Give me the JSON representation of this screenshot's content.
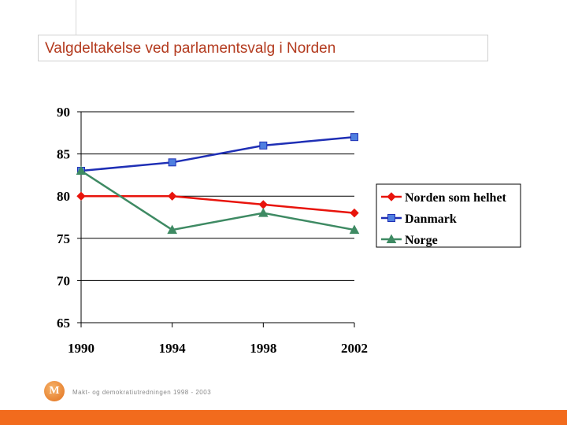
{
  "slide": {
    "title": "Valgdeltakelse ved parlamentsvalg i Norden",
    "footer_logo": "M",
    "footer_text": "Makt- og demokratiutredningen 1998 - 2003",
    "accent_color": "#f26b1d",
    "title_color": "#b33a1e"
  },
  "chart_data": {
    "type": "line",
    "title": "",
    "xlabel": "",
    "ylabel": "",
    "categories": [
      "1990",
      "1994",
      "1998",
      "2002"
    ],
    "ylim": [
      65,
      90
    ],
    "yticks": [
      "65",
      "70",
      "75",
      "80",
      "85",
      "90"
    ],
    "grid": "horizontal",
    "legend_position": "right",
    "series": [
      {
        "name": "Norden som helhet",
        "values": [
          80,
          80,
          79,
          78
        ],
        "color": "#e8140c",
        "marker": "diamond"
      },
      {
        "name": "Danmark",
        "values": [
          83,
          84,
          86,
          87
        ],
        "color": "#1f2fb5",
        "marker": "square"
      },
      {
        "name": "Norge",
        "values": [
          83,
          76,
          78,
          76
        ],
        "color": "#3e8a63",
        "marker": "triangle"
      }
    ]
  }
}
